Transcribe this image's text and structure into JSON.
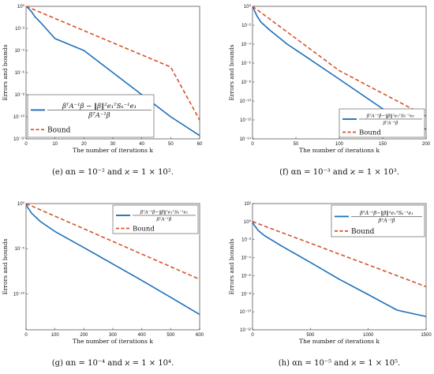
{
  "colors": {
    "errors": "#1f6fb8",
    "bound": "#d6522a"
  },
  "chart_data": [
    {
      "type": "line",
      "caption": "(e) αn = 10⁻² and ϰ = 1 × 10².",
      "xlabel": "The number of iterations k",
      "ylabel": "Errors and bounds",
      "xlim": [
        0,
        60
      ],
      "ylim_log10": [
        -12,
        0
      ],
      "log_y": true,
      "xticks": [
        0,
        10,
        20,
        30,
        40,
        50,
        60
      ],
      "yticks": [
        {
          "exp": 0,
          "label": "10⁰"
        },
        {
          "exp": -2,
          "label": "10⁻²"
        },
        {
          "exp": -4,
          "label": "10⁻⁴"
        },
        {
          "exp": -6,
          "label": "10⁻⁶"
        },
        {
          "exp": -8,
          "label": "10⁻⁸"
        },
        {
          "exp": -10,
          "label": "10⁻¹⁰"
        },
        {
          "exp": -12,
          "label": "10⁻¹²"
        }
      ],
      "legend": "bottom-left",
      "legend_size": "large",
      "series": [
        {
          "name": "βᵀA⁻¹β − ‖β‖²e₁ᵀSₖ⁻¹e₁ / βᵀA⁻¹β",
          "legend_num": "βᵀA⁻¹β − ‖β‖²e₁ᵀSₖ⁻¹e₁",
          "legend_den": "βᵀA⁻¹β",
          "style": "solid",
          "x": [
            0,
            1,
            2,
            3,
            5,
            10,
            20,
            30,
            40,
            50,
            60
          ],
          "y": [
            1,
            0.6,
            0.3,
            0.12,
            0.035,
            0.0012,
            0.0001,
            1e-06,
            1e-08,
            1e-10,
            2e-12
          ]
        },
        {
          "name": "Bound",
          "legend_num": "Bound",
          "style": "dashed",
          "x": [
            0,
            10,
            20,
            30,
            40,
            50,
            60
          ],
          "y": [
            1,
            0.08,
            0.0063,
            0.0005,
            4e-05,
            3.2e-06,
            5e-11
          ]
        }
      ]
    },
    {
      "type": "line",
      "caption": "(f) αn = 10⁻³ and ϰ = 1 × 10³.",
      "xlabel": "The number of iterations k",
      "ylabel": "Errors and bounds",
      "xlim": [
        0,
        200
      ],
      "ylim_log10": [
        -14,
        0
      ],
      "log_y": true,
      "xticks": [
        0,
        50,
        100,
        150,
        200
      ],
      "yticks": [
        {
          "exp": 0,
          "label": "10⁰"
        },
        {
          "exp": -2,
          "label": "10⁻²"
        },
        {
          "exp": -4,
          "label": "10⁻⁴"
        },
        {
          "exp": -6,
          "label": "10⁻⁶"
        },
        {
          "exp": -8,
          "label": "10⁻⁸"
        },
        {
          "exp": -10,
          "label": "10⁻¹⁰"
        },
        {
          "exp": -12,
          "label": "10⁻¹²"
        },
        {
          "exp": -14,
          "label": "10⁻¹⁴"
        }
      ],
      "legend": "bottom-right",
      "legend_size": "small",
      "series": [
        {
          "name": "βᵀA⁻¹β − ‖β‖²e₁ᵀSₖ⁻¹e₁ / βᵀA⁻¹β",
          "legend_num": "βᵀA⁻¹β−‖β‖²e₁ᵀSₖ⁻¹e₁",
          "legend_den": "βᵀA⁻¹β",
          "style": "solid",
          "x": [
            0,
            2,
            5,
            10,
            20,
            40,
            60,
            100,
            150,
            200
          ],
          "y": [
            1,
            0.4,
            0.1,
            0.02,
            0.003,
            0.0001,
            6e-06,
            2e-08,
            1.5e-11,
            1e-13
          ]
        },
        {
          "name": "Bound",
          "legend_num": "Bound",
          "style": "dashed",
          "x": [
            0,
            50,
            100,
            150,
            200
          ],
          "y": [
            1,
            0.0004,
            1.6e-07,
            6.3e-10,
            2.5e-12
          ]
        }
      ]
    },
    {
      "type": "line",
      "caption": "(g) αn = 10⁻⁴ and ϰ = 1 × 10⁴.",
      "xlabel": "The number of iterations k",
      "ylabel": "Errors and bounds",
      "xlim": [
        0,
        600
      ],
      "ylim_log10": [
        -14,
        0
      ],
      "log_y": true,
      "xticks": [
        0,
        100,
        200,
        300,
        400,
        500,
        600
      ],
      "yticks": [
        {
          "exp": 0,
          "label": "10⁰"
        },
        {
          "exp": -5,
          "label": "10⁻⁵"
        },
        {
          "exp": -10,
          "label": "10⁻¹⁰"
        }
      ],
      "legend": "top-right",
      "legend_size": "small",
      "series": [
        {
          "name": "βᵀA⁻¹β − ‖β‖²e₁ᵀSₖ⁻¹e₁ / βᵀA⁻¹β",
          "legend_num": "βᵀA⁻¹β−‖β‖²e₁ᵀSₖ⁻¹e₁",
          "legend_den": "βᵀA⁻¹β",
          "style": "solid",
          "x": [
            0,
            5,
            20,
            50,
            100,
            200,
            300,
            400,
            500,
            600
          ],
          "y": [
            1,
            0.4,
            0.08,
            0.01,
            0.0008,
            1.3e-05,
            2e-07,
            3e-09,
            4e-11,
            5e-13
          ]
        },
        {
          "name": "Bound",
          "legend_num": "Bound",
          "style": "dashed",
          "x": [
            0,
            100,
            200,
            300,
            400,
            500,
            600
          ],
          "y": [
            1,
            0.04,
            0.0016,
            6.3e-05,
            2.5e-06,
            1e-07,
            4e-09
          ]
        }
      ]
    },
    {
      "type": "line",
      "caption": "(h) αn = 10⁻⁵ and ϰ = 1 × 10⁵.",
      "xlabel": "The number of iterations k",
      "ylabel": "Errors and bounds",
      "xlim": [
        0,
        1500
      ],
      "ylim_log10": [
        -12,
        2
      ],
      "log_y": true,
      "xticks": [
        0,
        500,
        1000,
        1500
      ],
      "yticks": [
        {
          "exp": 2,
          "label": "10²"
        },
        {
          "exp": 0,
          "label": "10⁰"
        },
        {
          "exp": -2,
          "label": "10⁻²"
        },
        {
          "exp": -4,
          "label": "10⁻⁴"
        },
        {
          "exp": -6,
          "label": "10⁻⁶"
        },
        {
          "exp": -8,
          "label": "10⁻⁸"
        },
        {
          "exp": -10,
          "label": "10⁻¹⁰"
        },
        {
          "exp": -12,
          "label": "10⁻¹²"
        }
      ],
      "legend": "top-right",
      "legend_size": "medium",
      "series": [
        {
          "name": "βᵀA⁻¹β − ‖β‖²e₁ᵀSₖ⁻¹e₁ / βᵀA⁻¹β",
          "legend_num": "βᵀA⁻¹β−‖β‖²e₁ᵀSₖ⁻¹e₁",
          "legend_den": "βᵀA⁻¹β",
          "style": "solid",
          "x": [
            0,
            10,
            50,
            100,
            250,
            500,
            750,
            1000,
            1250,
            1500
          ],
          "y": [
            1,
            0.5,
            0.1,
            0.03,
            0.002,
            3e-05,
            4e-07,
            8e-09,
            1.5e-10,
            3e-11
          ]
        },
        {
          "name": "Bound",
          "legend_num": "Bound",
          "style": "dashed",
          "x": [
            0,
            250,
            500,
            750,
            1000,
            1250,
            1500
          ],
          "y": [
            1,
            0.063,
            0.004,
            0.00025,
            1.6e-05,
            1e-06,
            6e-08
          ]
        }
      ]
    }
  ]
}
